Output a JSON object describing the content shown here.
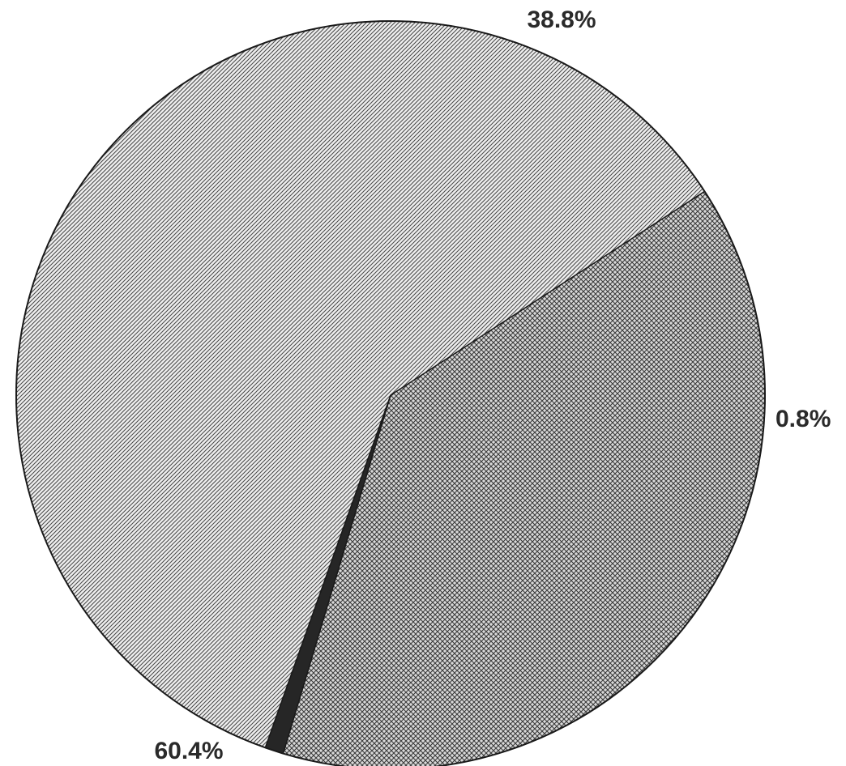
{
  "chart_data": {
    "type": "pie",
    "slices": [
      {
        "label": "38.8%",
        "value": 38.8,
        "pattern": "crosshatch",
        "color": "#8c8c8c"
      },
      {
        "label": "0.8%",
        "value": 0.8,
        "pattern": "solid",
        "color": "#262626"
      },
      {
        "label": "60.4%",
        "value": 60.4,
        "pattern": "diagonal",
        "color": "#9a9a9a"
      }
    ],
    "title": "",
    "legend": "none"
  }
}
